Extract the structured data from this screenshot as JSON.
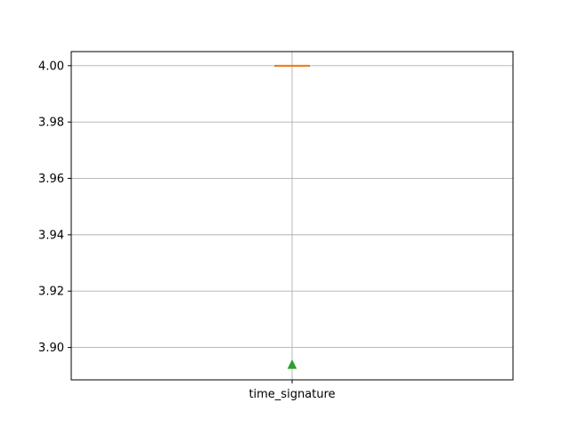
{
  "chart_data": {
    "type": "box",
    "categories": [
      "time_signature"
    ],
    "series": [
      {
        "median": 4.0,
        "q1": 4.0,
        "q3": 4.0,
        "whisker_low": 4.0,
        "whisker_high": 4.0,
        "mean": 3.894
      }
    ],
    "ylim": [
      3.8885,
      4.005
    ],
    "yticks": [
      3.9,
      3.92,
      3.94,
      3.96,
      3.98,
      4.0
    ],
    "ytick_labels": [
      "3.90",
      "3.92",
      "3.94",
      "3.96",
      "3.98",
      "4.00"
    ],
    "grid": true,
    "colors": {
      "median": "#ff7f0e",
      "mean": "#2ca02c",
      "grid": "#b0b0b0",
      "axes": "#000000"
    }
  }
}
